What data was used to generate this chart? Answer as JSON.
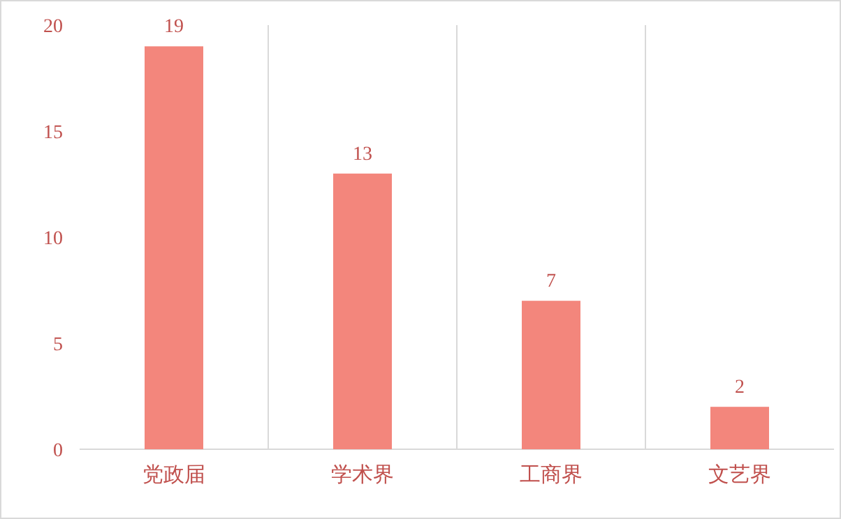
{
  "chart_data": {
    "type": "bar",
    "categories": [
      "党政届",
      "学术界",
      "工商界",
      "文艺界"
    ],
    "values": [
      19,
      13,
      7,
      2
    ],
    "color": "#f3867c",
    "ylim": [
      0,
      20
    ],
    "yticks": [
      0,
      5,
      10,
      15,
      20
    ],
    "grid": "x",
    "data_labels": true
  }
}
